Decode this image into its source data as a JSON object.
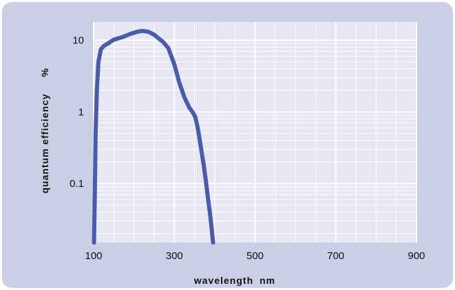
{
  "chart_data": {
    "type": "line",
    "xlabel": "wavelength",
    "xunit": "nm",
    "ylabel": "quantum efficiency",
    "yunit": "%",
    "x_scale": "linear",
    "y_scale": "log",
    "xlim": [
      100,
      900
    ],
    "ylim": [
      0.015,
      18
    ],
    "x_ticks": [
      "100",
      "300",
      "500",
      "700",
      "900"
    ],
    "y_ticks": [
      "0.1",
      "1",
      "10"
    ],
    "grid": true,
    "series": [
      {
        "color": "#4a5bab",
        "x": [
          101,
          103,
          105,
          108,
          112,
          118,
          125,
          135,
          150,
          170,
          190,
          205,
          220,
          235,
          250,
          262,
          272,
          285,
          300,
          312,
          325,
          337,
          345,
          352,
          358,
          363,
          368,
          373,
          378,
          383,
          388,
          392,
          396
        ],
        "y": [
          0.015,
          0.08,
          0.5,
          2.0,
          5.0,
          7.5,
          8.3,
          9.0,
          10.2,
          11.0,
          12.2,
          13.0,
          13.5,
          13.2,
          12.0,
          10.5,
          9.5,
          7.8,
          4.6,
          2.6,
          1.6,
          1.15,
          1.0,
          0.85,
          0.6,
          0.4,
          0.27,
          0.18,
          0.11,
          0.065,
          0.04,
          0.025,
          0.015
        ]
      }
    ]
  }
}
